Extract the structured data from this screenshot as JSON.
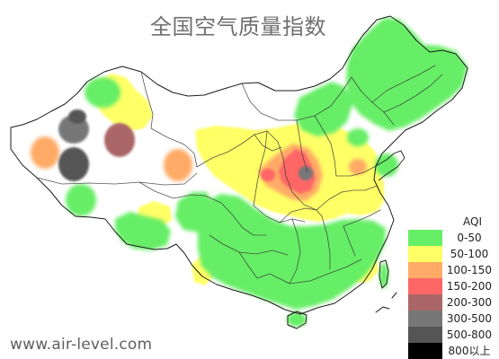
{
  "map": {
    "title": "全国空气质量指数",
    "watermark": "www.air-level.com",
    "legend": {
      "title": "AQI",
      "items": [
        {
          "label": "0-50",
          "color": "#66ee66"
        },
        {
          "label": "50-100",
          "color": "#ffff66"
        },
        {
          "label": "100-150",
          "color": "#ffaa66"
        },
        {
          "label": "150-200",
          "color": "#ff6666"
        },
        {
          "label": "200-300",
          "color": "#aa6666"
        },
        {
          "label": "300-500",
          "color": "#777777"
        },
        {
          "label": "500-800",
          "color": "#555555"
        },
        {
          "label": "800以上",
          "color": "#000000"
        }
      ]
    },
    "colors": {
      "good": "#66ee66",
      "moderate": "#ffff66",
      "sensitive": "#ffaa66",
      "unhealthy": "#ff6666",
      "very_unhealthy": "#aa6666",
      "hazardous": "#777777",
      "severe": "#555555",
      "extreme": "#000000",
      "border": "#1b1b1b"
    }
  }
}
